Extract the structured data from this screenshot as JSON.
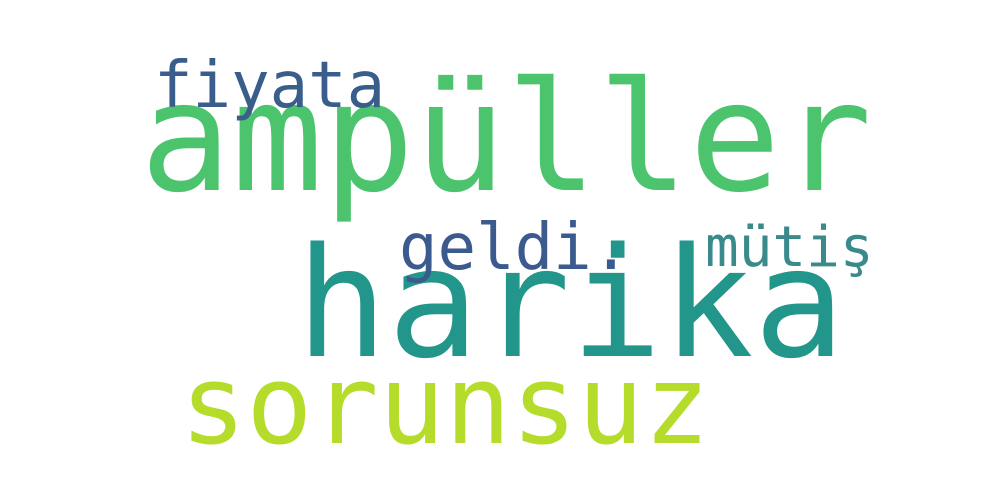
{
  "words": [
    {
      "key": "ampuller",
      "text": "ampüller",
      "color": "#4cc46e"
    },
    {
      "key": "harika",
      "text": "harika",
      "color": "#22968a"
    },
    {
      "key": "sorunsuz",
      "text": "sorunsuz",
      "color": "#b5dc2a"
    },
    {
      "key": "fiyata",
      "text": "fiyata",
      "color": "#3a5e8c"
    },
    {
      "key": "geldi",
      "text": "geldi.",
      "color": "#3b5a8e"
    },
    {
      "key": "mutis",
      "text": "mütiş",
      "color": "#3a8a8c"
    }
  ]
}
